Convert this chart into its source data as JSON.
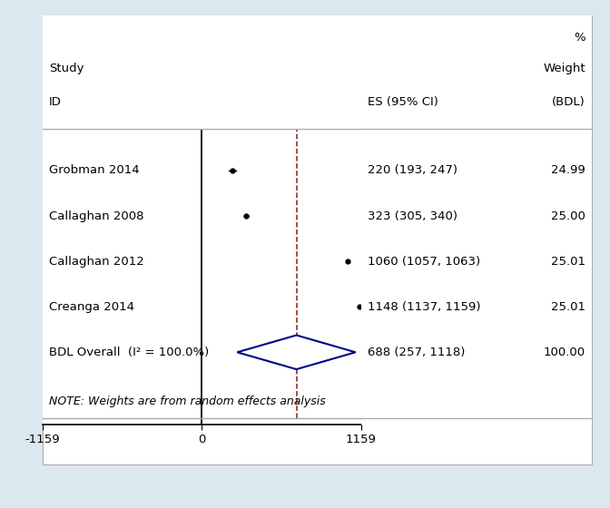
{
  "studies": [
    "Grobman 2014",
    "Callaghan 2008",
    "Callaghan 2012",
    "Creanga 2014"
  ],
  "es": [
    220,
    323,
    1060,
    1148
  ],
  "ci_low": [
    193,
    305,
    1057,
    1137
  ],
  "ci_high": [
    247,
    340,
    1063,
    1159
  ],
  "weights": [
    24.99,
    25.0,
    25.01,
    25.01
  ],
  "es_labels": [
    "220 (193, 247)",
    "323 (305, 340)",
    "1060 (1057, 1063)",
    "1148 (1137, 1159)"
  ],
  "overall_es": 688,
  "overall_ci_low": 257,
  "overall_ci_high": 1118,
  "overall_label": "688 (257, 1118)",
  "overall_weight": "100.00",
  "overall_text": "BDL Overall  (I² = 100.0%)",
  "x_min": -1159,
  "x_max": 1159,
  "x_ticks": [
    -1159,
    0,
    1159
  ],
  "dashed_line_x": 688,
  "note": "NOTE: Weights are from random effects analysis",
  "col_es_label": "ES (95% CI)",
  "col_weight_label": "(BDL)",
  "header_pct": "%",
  "header_weight": "Weight",
  "row_study": "Study",
  "row_id": "ID",
  "bg_color": "#dce8f0",
  "plot_bg_color": "#ffffff",
  "diamond_color": "#00008B",
  "dashed_color": "#8B1A1A",
  "marker_color": "#000000",
  "sep_color": "#aaaaaa",
  "font_size": 9.5
}
